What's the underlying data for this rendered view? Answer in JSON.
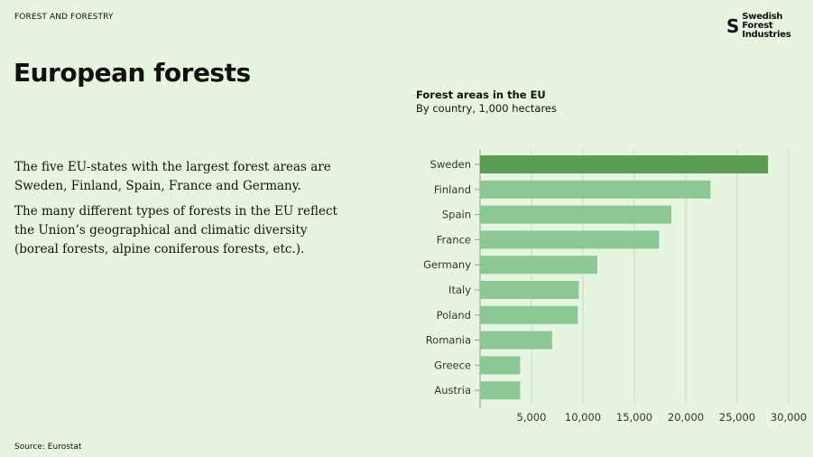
{
  "header": {
    "kicker": "FOREST AND FORESTRY",
    "logo_text": "Swedish Forest Industries",
    "logo_line1": "Swedish Forest",
    "logo_line2": "Industries"
  },
  "title": "European forests",
  "body": {
    "paragraph1": "The five EU-states with the largest forest areas are Sweden, Finland, Spain, France and Germany.",
    "paragraph2": "The many different types of forests in the EU reflect the Union’s geographical and climatic diversity (boreal forests, alpine coniferous forests, etc.)."
  },
  "source": "Source: Eurostat",
  "colors": {
    "background": "#e6f5df",
    "highlight_bar": "#5a9e55",
    "bar": "#8cc893",
    "grid": "#c9d9c4"
  },
  "chart_data": {
    "type": "bar",
    "orientation": "horizontal",
    "title": "Forest areas in the EU",
    "subtitle": "By country, 1,000 hectares",
    "categories": [
      "Sweden",
      "Finland",
      "Spain",
      "France",
      "Germany",
      "Italy",
      "Poland",
      "Romania",
      "Greece",
      "Austria"
    ],
    "values": [
      28000,
      22400,
      18600,
      17400,
      11400,
      9600,
      9500,
      7000,
      3900,
      3900
    ],
    "highlight": "Sweden",
    "xlim": [
      0,
      30000
    ],
    "xticks": [
      5000,
      10000,
      15000,
      20000,
      25000,
      30000
    ],
    "xtick_labels": [
      "5,000",
      "10,000",
      "15,000",
      "20,000",
      "25,000",
      "30,000"
    ],
    "grid": "vertical",
    "legend": "none"
  }
}
